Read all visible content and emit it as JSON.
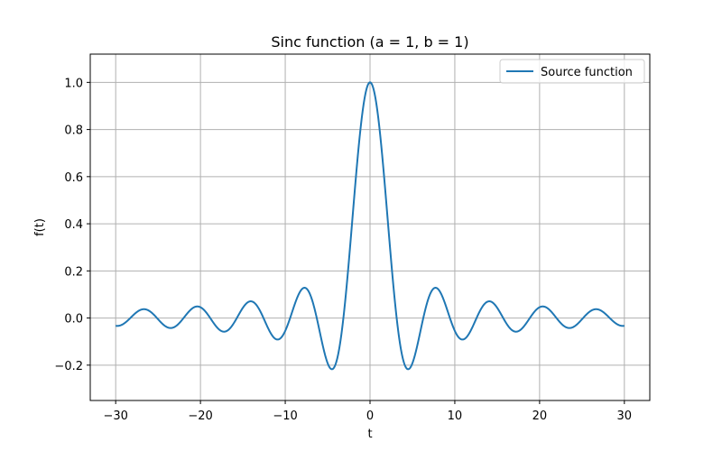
{
  "chart_data": {
    "type": "line",
    "title": "Sinc function (a = 1, b = 1)",
    "xlabel": "t",
    "ylabel": "f(t)",
    "xlim": [
      -33,
      33
    ],
    "ylim": [
      -0.35,
      1.12
    ],
    "xticks": [
      -30,
      -20,
      -10,
      0,
      10,
      20,
      30
    ],
    "xtick_labels": [
      "−30",
      "−20",
      "−10",
      "0",
      "10",
      "20",
      "30"
    ],
    "yticks": [
      -0.2,
      0.0,
      0.2,
      0.4,
      0.6,
      0.8,
      1.0
    ],
    "ytick_labels": [
      "−0.2",
      "0.0",
      "0.2",
      "0.4",
      "0.6",
      "0.8",
      "1.0"
    ],
    "grid": true,
    "legend_position": "top-right",
    "function": "sin(a*t)/(b*t)",
    "a": 1,
    "b": 1,
    "x_range": [
      -30,
      30
    ],
    "series": [
      {
        "name": "Source function",
        "color": "#1f77b4",
        "x": [
          -30,
          -29,
          -28,
          -27,
          -26,
          -25,
          -24,
          -23,
          -22,
          -21,
          -20,
          -19,
          -18,
          -17,
          -16,
          -15,
          -14,
          -13,
          -12,
          -11,
          -10,
          -9,
          -8,
          -7,
          -6,
          -5,
          -4,
          -3,
          -2,
          -1,
          0,
          1,
          2,
          3,
          4,
          5,
          6,
          7,
          8,
          9,
          10,
          11,
          12,
          13,
          14,
          15,
          16,
          17,
          18,
          19,
          20,
          21,
          22,
          23,
          24,
          25,
          26,
          27,
          28,
          29,
          30
        ],
        "y": [
          -0.0329,
          -0.0229,
          0.0097,
          0.0354,
          0.0292,
          -0.0053,
          -0.0377,
          -0.0368,
          0.0004,
          0.0399,
          0.0456,
          0.0079,
          -0.0417,
          -0.0566,
          -0.018,
          0.0433,
          0.0707,
          0.0323,
          -0.0447,
          -0.0909,
          -0.0544,
          0.0458,
          0.1237,
          0.0939,
          -0.0466,
          -0.1918,
          -0.1892,
          0.047,
          0.4546,
          0.8415,
          1.0,
          0.8415,
          0.4546,
          0.047,
          -0.1892,
          -0.1918,
          -0.0466,
          0.0939,
          0.1237,
          0.0458,
          -0.0544,
          -0.0909,
          -0.0447,
          0.0323,
          0.0707,
          0.0433,
          -0.018,
          -0.0566,
          -0.0417,
          0.0079,
          0.0456,
          0.0399,
          0.0004,
          -0.0368,
          -0.0377,
          -0.0053,
          0.0292,
          0.0354,
          0.0097,
          -0.0229,
          -0.0329
        ]
      }
    ]
  }
}
